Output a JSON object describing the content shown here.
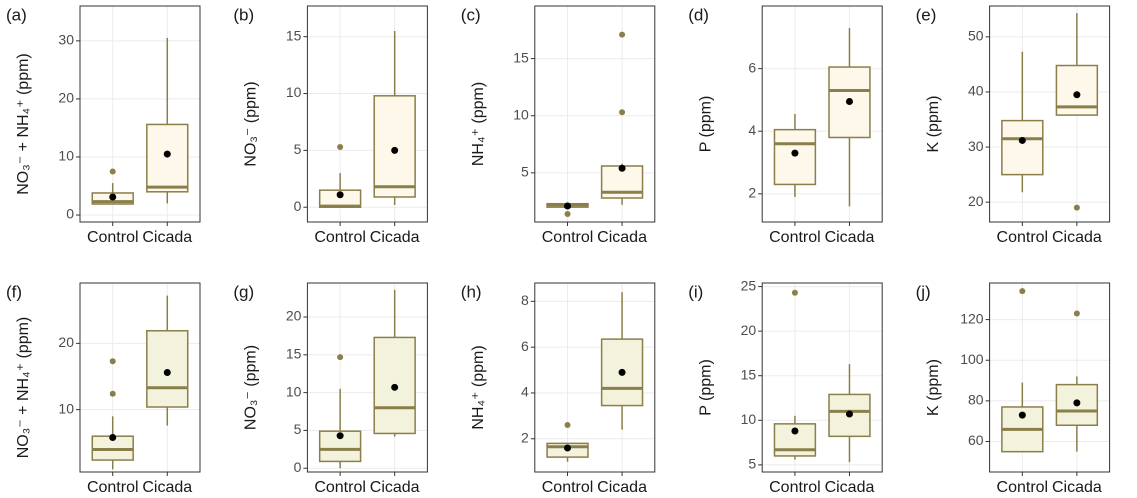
{
  "chart_data": [
    {
      "type": "box",
      "panel": "(a)",
      "y_label": "NO₃⁻ + NH₄⁺ (ppm)",
      "categories": [
        "Control",
        "Cicada"
      ],
      "boxes": [
        {
          "whisker_low": 1.8,
          "q1": 1.9,
          "median": 2.3,
          "q3": 3.8,
          "whisker_high": 5.5,
          "mean": 3.1,
          "outliers": [
            7.5
          ]
        },
        {
          "whisker_low": 2,
          "q1": 4,
          "median": 4.8,
          "q3": 15.6,
          "whisker_high": 30.5,
          "mean": 10.5,
          "outliers": []
        }
      ],
      "ylim": [
        -1.2,
        36
      ],
      "yticks": [
        0,
        10,
        20,
        30
      ],
      "fill": "#fdf8ea",
      "color": "#8a7e4a",
      "mean_color": "#000000",
      "grid": true
    },
    {
      "type": "box",
      "panel": "(b)",
      "y_label": "NO₃⁻ (ppm)",
      "categories": [
        "Control",
        "Cicada"
      ],
      "boxes": [
        {
          "whisker_low": 0,
          "q1": 0,
          "median": 0.1,
          "q3": 1.5,
          "whisker_high": 3,
          "mean": 1.1,
          "outliers": [
            5.3
          ]
        },
        {
          "whisker_low": 0.2,
          "q1": 0.9,
          "median": 1.8,
          "q3": 9.8,
          "whisker_high": 15.5,
          "mean": 5,
          "outliers": []
        }
      ],
      "ylim": [
        -1.3,
        17.7
      ],
      "yticks": [
        0,
        5,
        10,
        15
      ],
      "fill": "#fdf8ea",
      "color": "#8a7e4a",
      "mean_color": "#000000",
      "grid": true
    },
    {
      "type": "box",
      "panel": "(c)",
      "y_label": "NH₄⁺ (ppm)",
      "categories": [
        "Control",
        "Cicada"
      ],
      "boxes": [
        {
          "whisker_low": 1.9,
          "q1": 2.0,
          "median": 2.2,
          "q3": 2.3,
          "whisker_high": 2.4,
          "mean": 2.1,
          "outliers": [
            1.4
          ]
        },
        {
          "whisker_low": 2.2,
          "q1": 2.8,
          "median": 3.3,
          "q3": 5.6,
          "whisker_high": 5.8,
          "mean": 5.4,
          "outliers": [
            10.3,
            17.1
          ]
        }
      ],
      "ylim": [
        0.7,
        19.6
      ],
      "yticks": [
        5,
        10,
        15
      ],
      "fill": "#fdf8ea",
      "color": "#8a7e4a",
      "mean_color": "#000000",
      "grid": true
    },
    {
      "type": "box",
      "panel": "(d)",
      "y_label": "P (ppm)",
      "categories": [
        "Control",
        "Cicada"
      ],
      "boxes": [
        {
          "whisker_low": 1.9,
          "q1": 2.3,
          "median": 3.6,
          "q3": 4.05,
          "whisker_high": 4.55,
          "mean": 3.3,
          "outliers": []
        },
        {
          "whisker_low": 1.6,
          "q1": 3.8,
          "median": 5.3,
          "q3": 6.05,
          "whisker_high": 7.3,
          "mean": 4.95,
          "outliers": []
        }
      ],
      "ylim": [
        1.1,
        8.0
      ],
      "yticks": [
        2,
        4,
        6
      ],
      "fill": "#fdf8ea",
      "color": "#8a7e4a",
      "mean_color": "#000000",
      "grid": true
    },
    {
      "type": "box",
      "panel": "(e)",
      "y_label": "K (ppm)",
      "categories": [
        "Control",
        "Cicada"
      ],
      "boxes": [
        {
          "whisker_low": 21.8,
          "q1": 25,
          "median": 31.5,
          "q3": 34.8,
          "whisker_high": 47.3,
          "mean": 31.2,
          "outliers": []
        },
        {
          "whisker_low": 35.8,
          "q1": 35.8,
          "median": 37.3,
          "q3": 44.8,
          "whisker_high": 54.3,
          "mean": 39.5,
          "outliers": [
            19
          ]
        }
      ],
      "ylim": [
        16.4,
        55.6
      ],
      "yticks": [
        20,
        30,
        40,
        50
      ],
      "fill": "#fdf8ea",
      "color": "#8a7e4a",
      "mean_color": "#000000",
      "grid": true
    },
    {
      "type": "box",
      "panel": "(f)",
      "y_label": "NO₃⁻ + NH₄⁺ (ppm)",
      "categories": [
        "Control",
        "Cicada"
      ],
      "boxes": [
        {
          "whisker_low": 1,
          "q1": 2.4,
          "median": 4,
          "q3": 6,
          "whisker_high": 9,
          "mean": 5.8,
          "outliers": [
            12.4,
            17.3
          ]
        },
        {
          "whisker_low": 7.6,
          "q1": 10.4,
          "median": 13.3,
          "q3": 21.9,
          "whisker_high": 27.2,
          "mean": 15.6,
          "outliers": []
        }
      ],
      "ylim": [
        0.6,
        29.1
      ],
      "yticks": [
        10,
        20
      ],
      "fill": "#f3f2dc",
      "color": "#8a7e4a",
      "mean_color": "#000000",
      "grid": true
    },
    {
      "type": "box",
      "panel": "(g)",
      "y_label": "NO₃⁻ (ppm)",
      "categories": [
        "Control",
        "Cicada"
      ],
      "boxes": [
        {
          "whisker_low": 0,
          "q1": 0.9,
          "median": 2.5,
          "q3": 4.9,
          "whisker_high": 10.5,
          "mean": 4.3,
          "outliers": [
            14.7
          ]
        },
        {
          "whisker_low": 4.2,
          "q1": 4.6,
          "median": 8,
          "q3": 17.3,
          "whisker_high": 23.6,
          "mean": 10.7,
          "outliers": []
        }
      ],
      "ylim": [
        -0.5,
        24.5
      ],
      "yticks": [
        0,
        5,
        10,
        15,
        20
      ],
      "fill": "#f3f2dc",
      "color": "#8a7e4a",
      "mean_color": "#000000",
      "grid": true
    },
    {
      "type": "box",
      "panel": "(h)",
      "y_label": "NH₄⁺ (ppm)",
      "categories": [
        "Control",
        "Cicada"
      ],
      "boxes": [
        {
          "whisker_low": 1.0,
          "q1": 1.2,
          "median": 1.65,
          "q3": 1.8,
          "whisker_high": 1.8,
          "mean": 1.6,
          "outliers": [
            2.6
          ]
        },
        {
          "whisker_low": 2.4,
          "q1": 3.45,
          "median": 4.2,
          "q3": 6.35,
          "whisker_high": 8.4,
          "mean": 4.9,
          "outliers": []
        }
      ],
      "ylim": [
        0.55,
        8.8
      ],
      "yticks": [
        2,
        4,
        6,
        8
      ],
      "fill": "#f3f2dc",
      "color": "#8a7e4a",
      "mean_color": "#000000",
      "grid": true
    },
    {
      "type": "box",
      "panel": "(i)",
      "y_label": "P (ppm)",
      "categories": [
        "Control",
        "Cicada"
      ],
      "boxes": [
        {
          "whisker_low": 5.6,
          "q1": 6,
          "median": 6.7,
          "q3": 9.6,
          "whisker_high": 10.5,
          "mean": 8.8,
          "outliers": [
            24.3
          ]
        },
        {
          "whisker_low": 5.3,
          "q1": 8.2,
          "median": 11,
          "q3": 12.9,
          "whisker_high": 16.3,
          "mean": 10.7,
          "outliers": []
        }
      ],
      "ylim": [
        4.2,
        25.4
      ],
      "yticks": [
        5,
        10,
        15,
        20,
        25
      ],
      "fill": "#f3f2dc",
      "color": "#8a7e4a",
      "mean_color": "#000000",
      "grid": true
    },
    {
      "type": "box",
      "panel": "(j)",
      "y_label": "K (ppm)",
      "categories": [
        "Control",
        "Cicada"
      ],
      "boxes": [
        {
          "whisker_low": 55,
          "q1": 55,
          "median": 66,
          "q3": 77,
          "whisker_high": 89,
          "mean": 73,
          "outliers": [
            134
          ]
        },
        {
          "whisker_low": 55,
          "q1": 68,
          "median": 75,
          "q3": 88,
          "whisker_high": 92,
          "mean": 79,
          "outliers": [
            123
          ]
        }
      ],
      "ylim": [
        45,
        138
      ],
      "yticks": [
        60,
        80,
        100,
        120
      ],
      "fill": "#f3f2dc",
      "color": "#8a7e4a",
      "mean_color": "#000000",
      "grid": true
    }
  ]
}
